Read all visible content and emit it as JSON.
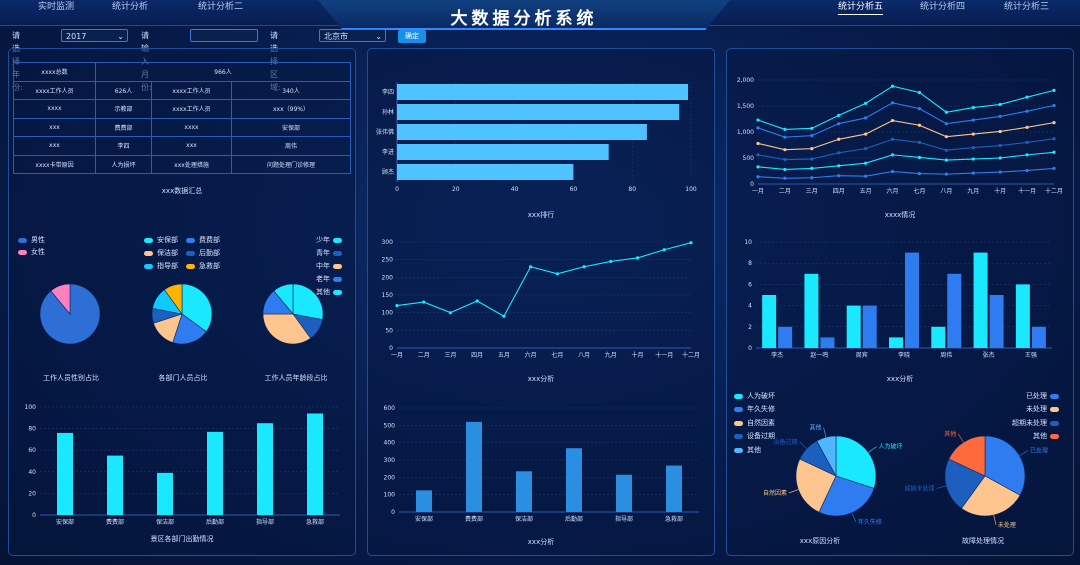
{
  "app": {
    "title": "大数据分析系统"
  },
  "nav": {
    "left": [
      "实时监测",
      "统计分析",
      "统计分析二"
    ],
    "right": [
      "统计分析五",
      "统计分析四",
      "统计分析三"
    ],
    "active": "统计分析五"
  },
  "filters": {
    "year_label": "请选择年份:",
    "year_value": "2017",
    "month_label": "请输入月份:",
    "month_value": "",
    "region_label": "请选择区域:",
    "region_value": "北京市",
    "confirm_label": "确定"
  },
  "summary_table": {
    "rows": [
      [
        "xxxx总数",
        "966人"
      ],
      [
        "xxxx工作人员",
        "626人",
        "xxxx工作人员",
        "340人"
      ],
      [
        "xxxx",
        "示教部",
        "xxxx工作人员",
        "xxx（99%）"
      ],
      [
        "xxx",
        "费费部",
        "xxxx",
        "安保部"
      ],
      [
        "xxx",
        "李四",
        "xxx",
        "周伟"
      ],
      [
        "xxxx卡带原因",
        "人为损坏",
        "xxx处理措施",
        "问题处理门诊修理"
      ]
    ],
    "caption": "xxx数据汇总"
  },
  "pies_row": {
    "gender_legend": [
      {
        "name": "男性",
        "color": "#2e6fd6"
      },
      {
        "name": "女性",
        "color": "#ff7fc0"
      }
    ],
    "dept_legend": [
      {
        "name": "安保部",
        "color": "#19e8ff"
      },
      {
        "name": "费费部",
        "color": "#2f7cf0"
      },
      {
        "name": "保洁部",
        "color": "#ffc58e"
      },
      {
        "name": "后勤部",
        "color": "#1d5fbf"
      },
      {
        "name": "指导部",
        "color": "#0fc9ff"
      },
      {
        "name": "急救部",
        "color": "#ffb300"
      }
    ],
    "age_legend": [
      {
        "name": "少年",
        "color": "#19e8ff"
      },
      {
        "name": "青年",
        "color": "#1d5fbf"
      },
      {
        "name": "中年",
        "color": "#ffc58e"
      },
      {
        "name": "老年",
        "color": "#2f7cf0"
      },
      {
        "name": "其他",
        "color": "#19e8ff"
      }
    ],
    "captions": [
      "工作人员性别占比",
      "各部门人员占比",
      "工作人员年龄段占比"
    ]
  },
  "chart_data": [
    {
      "id": "gender_pie",
      "type": "pie",
      "slices": [
        {
          "name": "男性",
          "value": 89,
          "color": "#2e6fd6"
        },
        {
          "name": "女性",
          "value": 11,
          "color": "#ff7fc0"
        }
      ]
    },
    {
      "id": "dept_pie",
      "type": "pie",
      "slices": [
        {
          "name": "安保部",
          "value": 35,
          "color": "#19e8ff"
        },
        {
          "name": "费费部",
          "value": 20,
          "color": "#2f7cf0"
        },
        {
          "name": "保洁部",
          "value": 15,
          "color": "#ffc58e"
        },
        {
          "name": "后勤部",
          "value": 8,
          "color": "#1d5fbf"
        },
        {
          "name": "指导部",
          "value": 12,
          "color": "#0fc9ff"
        },
        {
          "name": "急救部",
          "value": 10,
          "color": "#ffb300"
        }
      ]
    },
    {
      "id": "age_pie",
      "type": "pie",
      "slices": [
        {
          "name": "少年",
          "value": 28,
          "color": "#19e8ff"
        },
        {
          "name": "青年",
          "value": 12,
          "color": "#1d5fbf"
        },
        {
          "name": "中年",
          "value": 35,
          "color": "#ffc58e"
        },
        {
          "name": "老年",
          "value": 14,
          "color": "#2f7cf0"
        },
        {
          "name": "其他",
          "value": 11,
          "color": "#19e8ff"
        }
      ]
    },
    {
      "id": "dept_attendance",
      "type": "bar",
      "categories": [
        "安保部",
        "费费部",
        "保洁部",
        "后勤部",
        "指导部",
        "急救部"
      ],
      "values": [
        76,
        55,
        39,
        77,
        85,
        94
      ],
      "ylim": [
        0,
        100
      ],
      "yticks": [
        0,
        20,
        40,
        60,
        80,
        100
      ],
      "color": "#19e8ff",
      "caption": "景区各部门出勤情况"
    },
    {
      "id": "ranking",
      "type": "bar",
      "orientation": "horizontal",
      "categories": [
        "李四",
        "孙林",
        "张伟佛",
        "李进",
        "顾杰"
      ],
      "values": [
        99,
        96,
        85,
        72,
        60
      ],
      "xlim": [
        0,
        100
      ],
      "xticks": [
        0,
        20,
        40,
        60,
        80,
        100
      ],
      "color": "#4fc3ff",
      "caption": "xxx排行"
    },
    {
      "id": "monthly_line",
      "type": "line",
      "x": [
        "一月",
        "二月",
        "三月",
        "四月",
        "五月",
        "六月",
        "七月",
        "八月",
        "九月",
        "十月",
        "十一月",
        "十二月"
      ],
      "values": [
        120,
        130,
        100,
        133,
        90,
        230,
        210,
        230,
        245,
        255,
        278,
        298
      ],
      "ylim": [
        0,
        300
      ],
      "yticks": [
        0,
        50,
        100,
        150,
        200,
        250,
        300
      ],
      "color": "#19e8ff",
      "caption": "xxx分析"
    },
    {
      "id": "dept_analysis",
      "type": "bar",
      "categories": [
        "安保部",
        "费费部",
        "保洁部",
        "后勤部",
        "指导部",
        "急救部"
      ],
      "values": [
        125,
        520,
        235,
        368,
        215,
        268
      ],
      "ylim": [
        0,
        600
      ],
      "yticks": [
        0,
        100,
        200,
        300,
        400,
        500,
        600
      ],
      "color": "#2a8fe0",
      "caption": "xxx分析"
    },
    {
      "id": "overview_lines",
      "type": "line",
      "x": [
        "一月",
        "二月",
        "三月",
        "四月",
        "五月",
        "六月",
        "七月",
        "八月",
        "九月",
        "十月",
        "十一月",
        "十二月"
      ],
      "ylim": [
        0,
        2000
      ],
      "yticks": [
        0,
        500,
        1000,
        1500,
        2000
      ],
      "ytick_labels": [
        "0",
        "500",
        "1,000",
        "1,500",
        "2,000"
      ],
      "series": [
        {
          "values": [
            1230,
            1050,
            1070,
            1320,
            1550,
            1880,
            1760,
            1380,
            1470,
            1530,
            1670,
            1800
          ],
          "color": "#19e8ff"
        },
        {
          "values": [
            1080,
            900,
            930,
            1160,
            1270,
            1560,
            1450,
            1160,
            1230,
            1300,
            1400,
            1510
          ],
          "color": "#2f7cf0"
        },
        {
          "values": [
            780,
            660,
            680,
            860,
            960,
            1220,
            1130,
            910,
            960,
            1010,
            1090,
            1180
          ],
          "color": "#ffc58e"
        },
        {
          "values": [
            560,
            470,
            480,
            600,
            680,
            860,
            800,
            650,
            700,
            740,
            800,
            870
          ],
          "color": "#1d5fbf"
        },
        {
          "values": [
            330,
            280,
            300,
            350,
            400,
            560,
            510,
            460,
            480,
            500,
            560,
            610
          ],
          "color": "#19e8ff"
        },
        {
          "values": [
            140,
            110,
            120,
            160,
            150,
            240,
            200,
            190,
            210,
            230,
            260,
            300
          ],
          "color": "#2f7cf0"
        }
      ],
      "caption": "xxxx情况"
    },
    {
      "id": "person_analysis",
      "type": "bar",
      "categories": [
        "李杰",
        "赵一鸣",
        "周宾",
        "李晓",
        "周伟",
        "张杰",
        "王强"
      ],
      "series": [
        {
          "values": [
            5,
            7,
            4,
            1,
            2,
            9,
            6
          ],
          "color": "#19e8ff"
        },
        {
          "values": [
            2,
            1,
            4,
            9,
            7,
            5,
            2
          ],
          "color": "#2f7cf0"
        }
      ],
      "ylim": [
        0,
        10
      ],
      "yticks": [
        0,
        2,
        4,
        6,
        8,
        10
      ],
      "caption": "xxx分析"
    },
    {
      "id": "cause_pie",
      "type": "pie",
      "slices": [
        {
          "name": "人为破坏",
          "value": 30,
          "color": "#19e8ff"
        },
        {
          "name": "年久失修",
          "value": 27,
          "color": "#2f7cf0"
        },
        {
          "name": "自然因素",
          "value": 25,
          "color": "#ffc58e"
        },
        {
          "name": "设备过期",
          "value": 10,
          "color": "#1d5fbf"
        },
        {
          "name": "其他",
          "value": 8,
          "color": "#4fb6ff"
        }
      ],
      "legend": [
        "人为破坏",
        "年久失修",
        "自然因素",
        "设备过期",
        "其他"
      ],
      "caption": "xxx原因分析"
    },
    {
      "id": "handle_pie",
      "type": "pie",
      "slices": [
        {
          "name": "已处理",
          "value": 33,
          "color": "#2f7cf0"
        },
        {
          "name": "未处理",
          "value": 27,
          "color": "#ffc58e"
        },
        {
          "name": "超期未处理",
          "value": 22,
          "color": "#1d5fbf"
        },
        {
          "name": "其他",
          "value": 18,
          "color": "#ff6a3d"
        }
      ],
      "legend": [
        "已处理",
        "未处理",
        "超期未处理",
        "其他"
      ],
      "caption": "故障处理情况"
    }
  ]
}
